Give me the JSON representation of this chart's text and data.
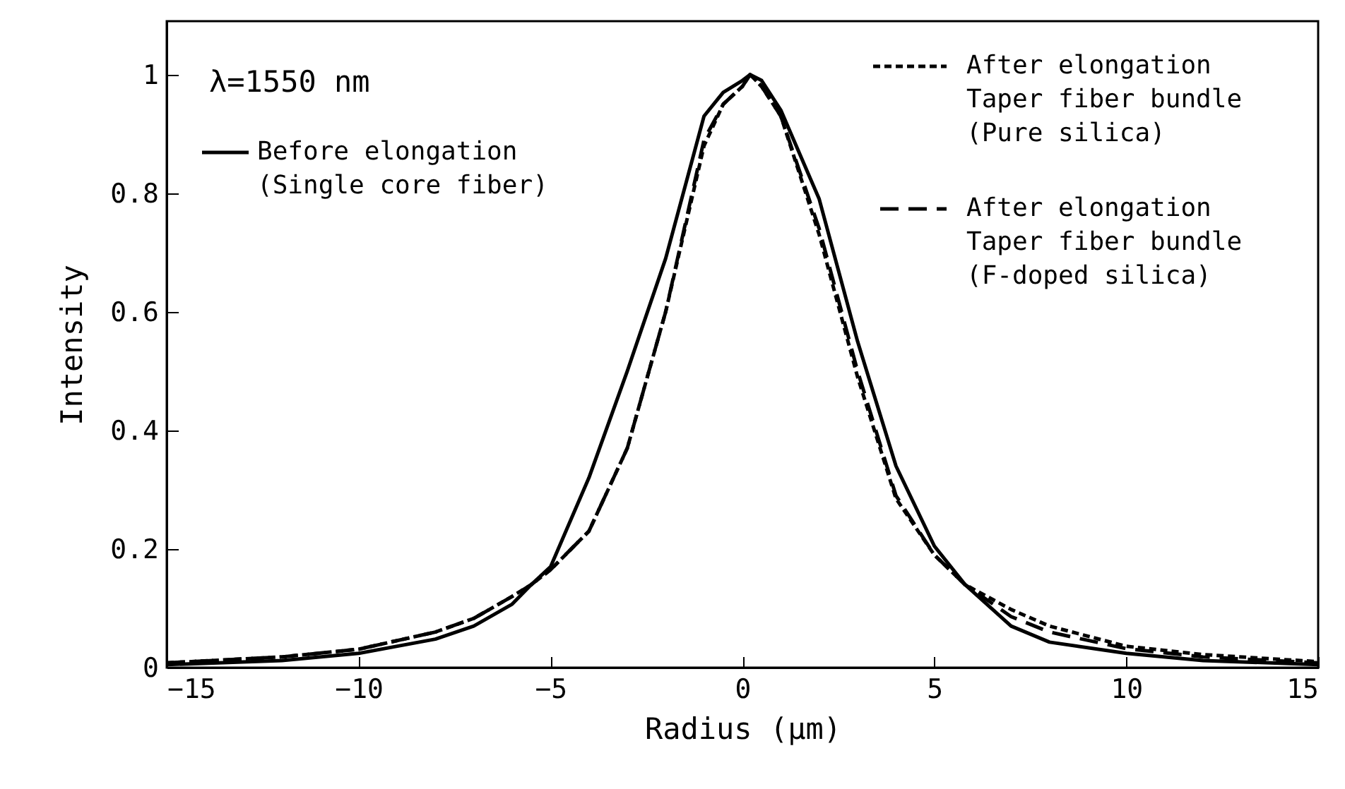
{
  "chart_data": {
    "type": "line",
    "xlabel": "Radius (μm)",
    "ylabel": "Intensity",
    "annotations": [
      "λ=1550 nm"
    ],
    "x": [
      -15,
      -12,
      -10,
      -8,
      -7,
      -6,
      -5.5,
      -5,
      -4,
      -3,
      -2,
      -1,
      -0.5,
      0,
      0.2,
      0.5,
      1,
      2,
      3,
      4,
      5,
      5.8,
      7,
      8,
      10,
      12,
      15
    ],
    "series": [
      {
        "name": "Before elongation\n(Single core fiber)",
        "color": "#000000",
        "line_style": "solid",
        "values": [
          0.005,
          0.012,
          0.024,
          0.048,
          0.07,
          0.107,
          0.14,
          0.17,
          0.32,
          0.5,
          0.69,
          0.93,
          0.97,
          0.99,
          1.0,
          0.99,
          0.94,
          0.79,
          0.55,
          0.34,
          0.205,
          0.14,
          0.07,
          0.043,
          0.024,
          0.012,
          0.005
        ]
      },
      {
        "name": "After elongation\nTaper fiber bundle\n(Pure silica)",
        "color": "#000000",
        "line_style": "dotted",
        "values": [
          0.008,
          0.018,
          0.031,
          0.06,
          0.083,
          0.12,
          0.14,
          0.165,
          0.23,
          0.37,
          0.6,
          0.88,
          0.95,
          0.98,
          1.0,
          0.98,
          0.93,
          0.73,
          0.49,
          0.285,
          0.19,
          0.14,
          0.098,
          0.07,
          0.036,
          0.022,
          0.01
        ]
      },
      {
        "name": "After elongation\nTaper fiber bundle\n(F-doped silica)",
        "color": "#000000",
        "line_style": "dashed",
        "values": [
          0.008,
          0.018,
          0.031,
          0.06,
          0.083,
          0.12,
          0.14,
          0.165,
          0.23,
          0.37,
          0.6,
          0.89,
          0.95,
          0.98,
          1.0,
          0.98,
          0.93,
          0.74,
          0.5,
          0.29,
          0.19,
          0.14,
          0.086,
          0.06,
          0.032,
          0.018,
          0.008
        ]
      }
    ],
    "xlim": [
      -15,
      15
    ],
    "xticks": [
      -15,
      -10,
      -5,
      0,
      5,
      10,
      15
    ],
    "ylim": [
      0,
      1.09
    ],
    "yticks": [
      0,
      0.2,
      0.4,
      0.6,
      0.8,
      1
    ],
    "legend": "top"
  }
}
